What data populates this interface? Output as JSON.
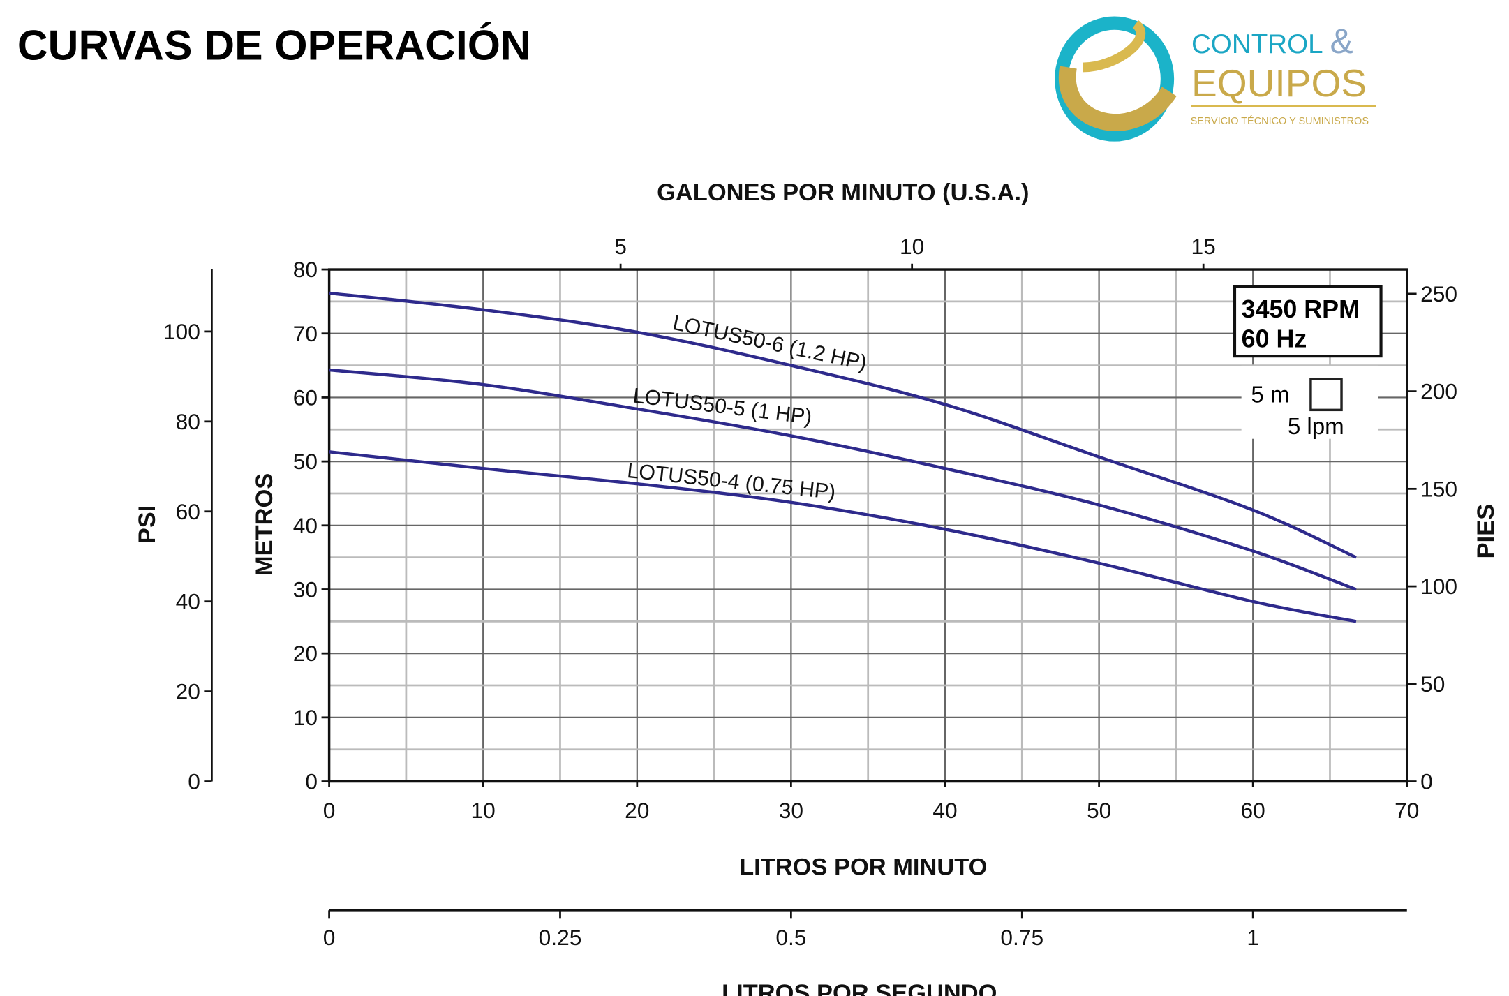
{
  "header": {
    "title": "CURVAS DE OPERACIÓN"
  },
  "logo": {
    "line1": "CONTROL",
    "amp": "&",
    "line2": "EQUIPOS",
    "tagline": "SERVICIO TÉCNICO Y SUMINISTROS"
  },
  "colors": {
    "curve": "#2e2a8c",
    "logo_teal": "#1bb3c9",
    "logo_gold": "#c9a94a"
  },
  "chart_data": {
    "type": "line",
    "title": "CURVAS DE OPERACIÓN",
    "xlabel": "LITROS POR MINUTO",
    "ylabel": "METROS",
    "xlim": [
      0,
      70
    ],
    "ylim": [
      0,
      80
    ],
    "grid": true,
    "x_ticks": [
      0,
      10,
      20,
      30,
      40,
      50,
      60,
      70
    ],
    "y_ticks": [
      0,
      10,
      20,
      30,
      40,
      50,
      60,
      70,
      80
    ],
    "top_axis": {
      "label": "GALONES POR MINUTO (U.S.A.)",
      "ticks": [
        5,
        10,
        15
      ]
    },
    "psi_axis": {
      "label": "PSI",
      "ticks": [
        0,
        20,
        40,
        60,
        80,
        100
      ]
    },
    "pies_axis": {
      "label": "PIES",
      "ticks": [
        0,
        50,
        100,
        150,
        200,
        250
      ]
    },
    "lps_axis": {
      "label": "LITROS POR SEGUNDO",
      "ticks": [
        "0",
        "0.25",
        "0.5",
        "0.75",
        "1"
      ],
      "values": [
        0,
        0.25,
        0.5,
        0.75,
        1
      ]
    },
    "info_box": {
      "line1": "3450 RPM",
      "line2": "60 Hz"
    },
    "scale_legend": {
      "vertical": "5 m",
      "horizontal": "5 lpm"
    },
    "series": [
      {
        "name": "LOTUS50-6 (1.2 HP)",
        "x": [
          0,
          10,
          20,
          30,
          40,
          50,
          60,
          66.7
        ],
        "y": [
          76.3,
          73.7,
          70.2,
          65,
          58.9,
          50.7,
          42.4,
          35
        ]
      },
      {
        "name": "LOTUS50-5 (1 HP)",
        "x": [
          0,
          10,
          20,
          30,
          40,
          50,
          60,
          66.7
        ],
        "y": [
          64.3,
          62,
          58.2,
          54,
          48.9,
          43.2,
          36,
          30
        ]
      },
      {
        "name": "LOTUS50-4 (0.75 HP)",
        "x": [
          0,
          10,
          20,
          30,
          40,
          50,
          60,
          66.7
        ],
        "y": [
          51.5,
          48.9,
          46.5,
          43.6,
          39.4,
          34.1,
          28.1,
          25
        ]
      }
    ]
  }
}
